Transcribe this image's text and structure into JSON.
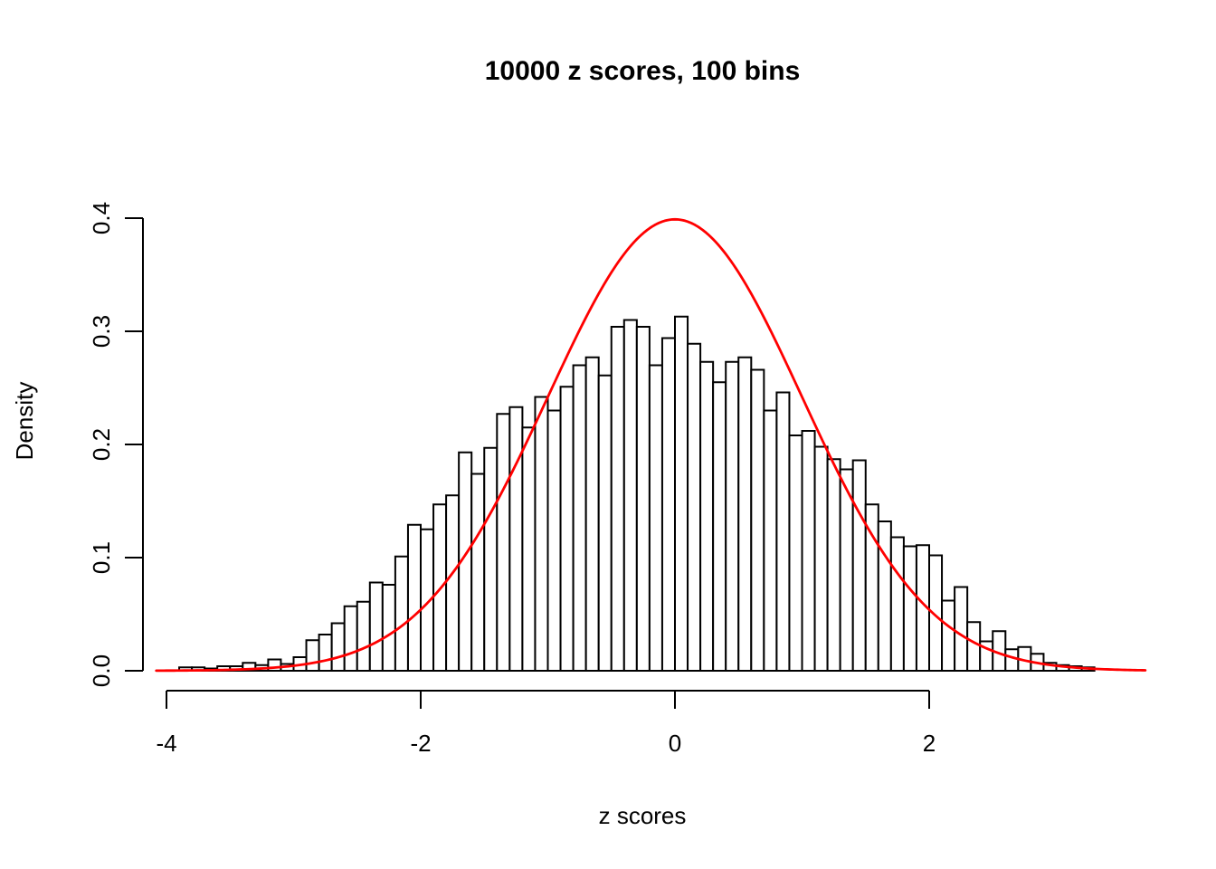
{
  "chart_data": {
    "type": "bar",
    "subtype": "histogram",
    "title": "10000 z scores, 100 bins",
    "xlabel": "z scores",
    "ylabel": "Density",
    "grid": false,
    "legend": null,
    "xlim": [
      -4.2,
      3.8
    ],
    "ylim": [
      0,
      0.4
    ],
    "x_tick_values": [
      -4,
      -2,
      0,
      2
    ],
    "x_tick_labels": [
      "-4",
      "-2",
      "0",
      "2"
    ],
    "y_tick_values": [
      0.0,
      0.1,
      0.2,
      0.3,
      0.4
    ],
    "y_tick_labels": [
      "0.0",
      "0.1",
      "0.2",
      "0.3",
      "0.4"
    ],
    "bin_start": -3.9,
    "bin_width": 0.1,
    "densities": [
      0.003,
      0.003,
      0.002,
      0.004,
      0.004,
      0.007,
      0.005,
      0.01,
      0.006,
      0.012,
      0.027,
      0.032,
      0.042,
      0.057,
      0.061,
      0.078,
      0.076,
      0.101,
      0.129,
      0.125,
      0.147,
      0.155,
      0.193,
      0.174,
      0.197,
      0.227,
      0.233,
      0.215,
      0.242,
      0.23,
      0.251,
      0.27,
      0.277,
      0.261,
      0.304,
      0.31,
      0.304,
      0.27,
      0.294,
      0.313,
      0.289,
      0.273,
      0.255,
      0.273,
      0.277,
      0.266,
      0.23,
      0.246,
      0.208,
      0.212,
      0.198,
      0.187,
      0.178,
      0.186,
      0.147,
      0.132,
      0.118,
      0.11,
      0.111,
      0.102,
      0.062,
      0.074,
      0.043,
      0.026,
      0.035,
      0.019,
      0.021,
      0.015,
      0.007,
      0.005,
      0.004,
      0.003
    ],
    "bar_fill": "#FFFFFF",
    "bar_stroke": "#000000",
    "axis_color": "#000000",
    "curve": {
      "name": "normal-density",
      "mean": 0,
      "sd": 1,
      "color": "#FF0000",
      "x_from": -4.08,
      "x_to": 3.7
    }
  }
}
